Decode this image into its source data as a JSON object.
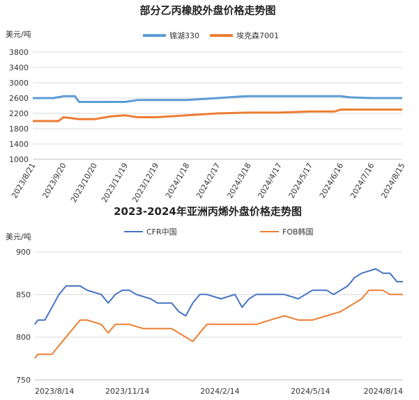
{
  "chart_data": [
    {
      "type": "line",
      "title": "部分乙丙橡胶外盘价格走势图",
      "ylabel": "美元/吨",
      "ylim": [
        1000,
        3800
      ],
      "yticks": [
        1000,
        1400,
        1800,
        2200,
        2600,
        3000,
        3400,
        3800
      ],
      "xlabels": [
        "2023/8/21",
        "2023/9/20",
        "2023/10/20",
        "2023/11/19",
        "2023/12/19",
        "2024/1/18",
        "2024/2/17",
        "2024/3/18",
        "2024/4/17",
        "2024/5/17",
        "2024/6/16",
        "2024/7/16",
        "2024/8/15"
      ],
      "legend_position": "top",
      "grid": "horizontal",
      "series": [
        {
          "name": "锦湖330",
          "color": "#5b9bd5",
          "x": [
            "2023/8/21",
            "2023/9/10",
            "2023/9/20",
            "2023/10/1",
            "2023/10/5",
            "2023/10/20",
            "2023/11/10",
            "2023/11/19",
            "2023/12/1",
            "2023/12/19",
            "2024/1/18",
            "2024/2/5",
            "2024/2/17",
            "2024/3/10",
            "2024/3/18",
            "2024/4/17",
            "2024/5/17",
            "2024/6/16",
            "2024/6/25",
            "2024/7/16",
            "2024/8/15"
          ],
          "y": [
            2600,
            2600,
            2650,
            2650,
            2500,
            2500,
            2500,
            2500,
            2550,
            2550,
            2550,
            2580,
            2600,
            2640,
            2650,
            2650,
            2650,
            2650,
            2620,
            2600,
            2600
          ]
        },
        {
          "name": "埃克森7001",
          "color": "#ed7d31",
          "x": [
            "2023/8/21",
            "2023/9/15",
            "2023/9/20",
            "2023/10/5",
            "2023/10/20",
            "2023/11/5",
            "2023/11/19",
            "2023/12/1",
            "2023/12/19",
            "2024/1/18",
            "2024/2/17",
            "2024/3/18",
            "2024/4/17",
            "2024/5/17",
            "2024/6/10",
            "2024/6/16",
            "2024/7/16",
            "2024/8/15"
          ],
          "y": [
            2000,
            2000,
            2100,
            2050,
            2050,
            2120,
            2150,
            2100,
            2100,
            2150,
            2200,
            2220,
            2220,
            2250,
            2250,
            2300,
            2300,
            2300
          ]
        }
      ]
    },
    {
      "type": "line",
      "title": "2023-2024年亚洲丙烯外盘价格走势图",
      "ylabel": "美元/吨",
      "ylim": [
        750,
        900
      ],
      "yticks": [
        750,
        800,
        850,
        900
      ],
      "xlabels": [
        "2023/8/14",
        "2023/11/14",
        "2024/2/14",
        "2024/5/14",
        "2024/8/14"
      ],
      "legend_position": "top",
      "grid": "horizontal",
      "series": [
        {
          "name": "CFR中国",
          "color": "#4472c4",
          "x": [
            "2023/8/14",
            "2023/8/17",
            "2023/8/24",
            "2023/8/31",
            "2023/9/7",
            "2023/9/14",
            "2023/9/28",
            "2023/10/5",
            "2023/10/19",
            "2023/10/26",
            "2023/11/2",
            "2023/11/9",
            "2023/11/16",
            "2023/11/23",
            "2023/12/7",
            "2023/12/14",
            "2023/12/28",
            "2024/1/4",
            "2024/1/11",
            "2024/1/18",
            "2024/1/25",
            "2024/2/1",
            "2024/2/15",
            "2024/2/29",
            "2024/3/7",
            "2024/3/14",
            "2024/3/21",
            "2024/4/4",
            "2024/4/18",
            "2024/5/2",
            "2024/5/16",
            "2024/5/30",
            "2024/6/6",
            "2024/6/20",
            "2024/6/27",
            "2024/7/4",
            "2024/7/18",
            "2024/7/25",
            "2024/8/1",
            "2024/8/8",
            "2024/8/14"
          ],
          "y": [
            815,
            820,
            820,
            835,
            850,
            860,
            860,
            855,
            850,
            840,
            850,
            855,
            855,
            850,
            845,
            840,
            840,
            830,
            825,
            840,
            850,
            850,
            845,
            850,
            835,
            845,
            850,
            850,
            850,
            845,
            855,
            855,
            850,
            860,
            870,
            875,
            880,
            875,
            875,
            865,
            865
          ]
        },
        {
          "name": "FOB韩国",
          "color": "#ed7d31",
          "x": [
            "2023/8/14",
            "2023/8/17",
            "2023/8/31",
            "2023/9/7",
            "2023/9/14",
            "2023/9/21",
            "2023/9/28",
            "2023/10/5",
            "2023/10/19",
            "2023/10/26",
            "2023/11/2",
            "2023/11/16",
            "2023/11/30",
            "2023/12/14",
            "2023/12/28",
            "2024/1/4",
            "2024/1/18",
            "2024/1/25",
            "2024/2/1",
            "2024/2/15",
            "2024/3/7",
            "2024/3/21",
            "2024/4/4",
            "2024/4/18",
            "2024/5/2",
            "2024/5/16",
            "2024/5/30",
            "2024/6/13",
            "2024/6/27",
            "2024/7/4",
            "2024/7/11",
            "2024/7/25",
            "2024/8/1",
            "2024/8/14"
          ],
          "y": [
            775,
            780,
            780,
            790,
            800,
            810,
            820,
            820,
            815,
            805,
            815,
            815,
            810,
            810,
            810,
            805,
            795,
            805,
            815,
            815,
            815,
            815,
            820,
            825,
            820,
            820,
            825,
            830,
            840,
            845,
            855,
            855,
            850,
            850
          ]
        }
      ]
    }
  ]
}
